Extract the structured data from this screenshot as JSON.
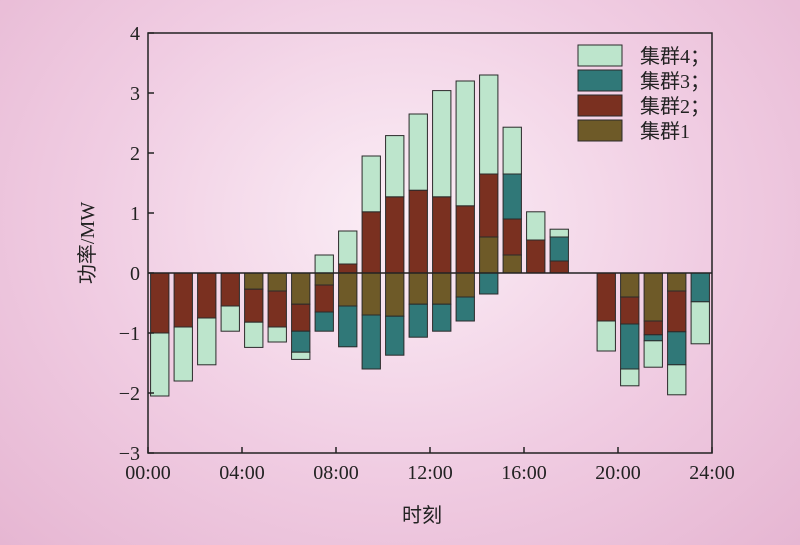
{
  "chart_data": {
    "type": "bar",
    "stacked": "diverging",
    "xlabel": "时刻",
    "ylabel": "功率/MW",
    "ylim": [
      -3,
      4
    ],
    "xlim": [
      0,
      24
    ],
    "yticks": [
      -3,
      -2,
      -1,
      0,
      1,
      2,
      3,
      4
    ],
    "ytick_labels": [
      "−3",
      "−2",
      "−1",
      "0",
      "1",
      "2",
      "3",
      "4"
    ],
    "xticks": [
      0,
      4,
      8,
      12,
      16,
      20,
      24
    ],
    "xtick_labels": [
      "00:00",
      "04:00",
      "08:00",
      "12:00",
      "16:00",
      "20:00",
      "24:00"
    ],
    "legend_position": "top-right",
    "categories": [
      1,
      2,
      3,
      4,
      5,
      6,
      7,
      8,
      9,
      10,
      11,
      12,
      13,
      14,
      15,
      16,
      17,
      18,
      19,
      20,
      21,
      22,
      23,
      24
    ],
    "series": [
      {
        "name": "集群1",
        "color": "#6e5a28",
        "values": [
          0,
          0,
          0,
          0,
          -0.27,
          -0.3,
          -0.52,
          -0.2,
          -0.55,
          -0.7,
          -0.72,
          -0.52,
          -0.52,
          -0.4,
          0.6,
          0.3,
          0,
          0,
          0,
          0,
          -0.4,
          -0.8,
          -0.3,
          0
        ]
      },
      {
        "name": "集群2",
        "color": "#7a3020",
        "values": [
          -1.0,
          -0.9,
          -0.75,
          -0.55,
          -0.55,
          -0.6,
          -0.45,
          -0.45,
          0.15,
          1.02,
          1.27,
          1.38,
          1.27,
          1.12,
          1.05,
          0.6,
          0.55,
          0.2,
          0,
          -0.8,
          -0.45,
          -0.23,
          -0.68,
          0
        ]
      },
      {
        "name": "集群3",
        "color": "#307878",
        "values": [
          0,
          0,
          0,
          0,
          0,
          0,
          -0.35,
          -0.32,
          -0.68,
          -0.9,
          -0.65,
          -0.55,
          -0.45,
          -0.4,
          -0.35,
          0.75,
          0,
          0.4,
          0,
          0,
          -0.75,
          -0.1,
          -0.55,
          -0.48
        ]
      },
      {
        "name": "集群4",
        "color": "#bde5cc",
        "values": [
          -1.05,
          -0.9,
          -0.78,
          -0.42,
          -0.42,
          -0.25,
          -0.12,
          0.3,
          0.55,
          0.93,
          1.02,
          1.27,
          1.77,
          2.08,
          1.65,
          0.78,
          0.47,
          0.13,
          0,
          -0.5,
          -0.28,
          -0.44,
          -0.5,
          -0.7
        ]
      }
    ],
    "legend": [
      "集群4；",
      "集群3；",
      "集群2；",
      "集群1"
    ]
  }
}
